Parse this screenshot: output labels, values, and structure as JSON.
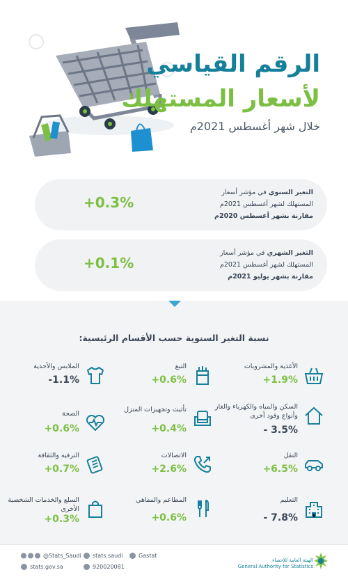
{
  "header": {
    "title_line1": "الرقم القياسي",
    "title_line2": "لأسعار المستهلك",
    "subtitle": "خلال شهر أغسطس 2021م"
  },
  "annual_card": {
    "value": "+0.3%",
    "lead": "التغير السنوي",
    "line1_rest": " في مؤشر أسعار",
    "line2": "المستهلك لشهر أغسطس 2021م",
    "line3": "مقارنة بشهر أغسطس 2020م"
  },
  "monthly_card": {
    "value": "+0.1%",
    "lead": "التغير الشهري",
    "line1_rest": " في مؤشر أسعار",
    "line2": "المستهلك لشهر أغسطس 2021م",
    "line3": "مقارنة بشهر يوليو 2021م"
  },
  "section_title": "نسبة التغير السنوية حسب الأقسام الرئيسية:",
  "categories": [
    {
      "name": "الأغذية والمشروبات",
      "value": "+1.9%",
      "icon": "food-basket-icon"
    },
    {
      "name": "التبغ",
      "value": "+0.6%",
      "icon": "tobacco-icon"
    },
    {
      "name": "الملابس والأحذية",
      "value": "-1.1%",
      "icon": "shirt-icon"
    },
    {
      "name": "السكن والمياه والكهرباء والغاز وأنواع وقود أخرى",
      "value": "- 3.5%",
      "icon": "house-icon"
    },
    {
      "name": "تأثيث وتجهيزات المنزل",
      "value": "+0.4%",
      "icon": "armchair-icon"
    },
    {
      "name": "الصحة",
      "value": "+0.6%",
      "icon": "heart-pulse-icon"
    },
    {
      "name": "النقل",
      "value": "+6.5%",
      "icon": "car-icon"
    },
    {
      "name": "الاتصالات",
      "value": "+2.6%",
      "icon": "phone-icon"
    },
    {
      "name": "الترفيه والثقافة",
      "value": "+0.7%",
      "icon": "tickets-icon"
    },
    {
      "name": "التعليم",
      "value": "- 7.8%",
      "icon": "school-icon"
    },
    {
      "name": "المطاعم والمقاهي",
      "value": "+0.6%",
      "icon": "fork-knife-icon"
    },
    {
      "name": "السلع والخدمات الشخصية الأخرى",
      "value": "+0.3%",
      "icon": "shopping-bag-icon"
    }
  ],
  "footer": {
    "social": "@Stats_Saudi",
    "facebook": "stats.saudi",
    "linkedin": "Gastat",
    "website": "stats.gov.sa",
    "phone": "920020081",
    "authority_ar": "الهيئة العامة للإحصاء",
    "authority_en": "General Authority for Statistics"
  },
  "colors": {
    "teal": "#16809a",
    "green": "#7cc043",
    "dark": "#3a4756",
    "blue": "#1e8fd0"
  }
}
